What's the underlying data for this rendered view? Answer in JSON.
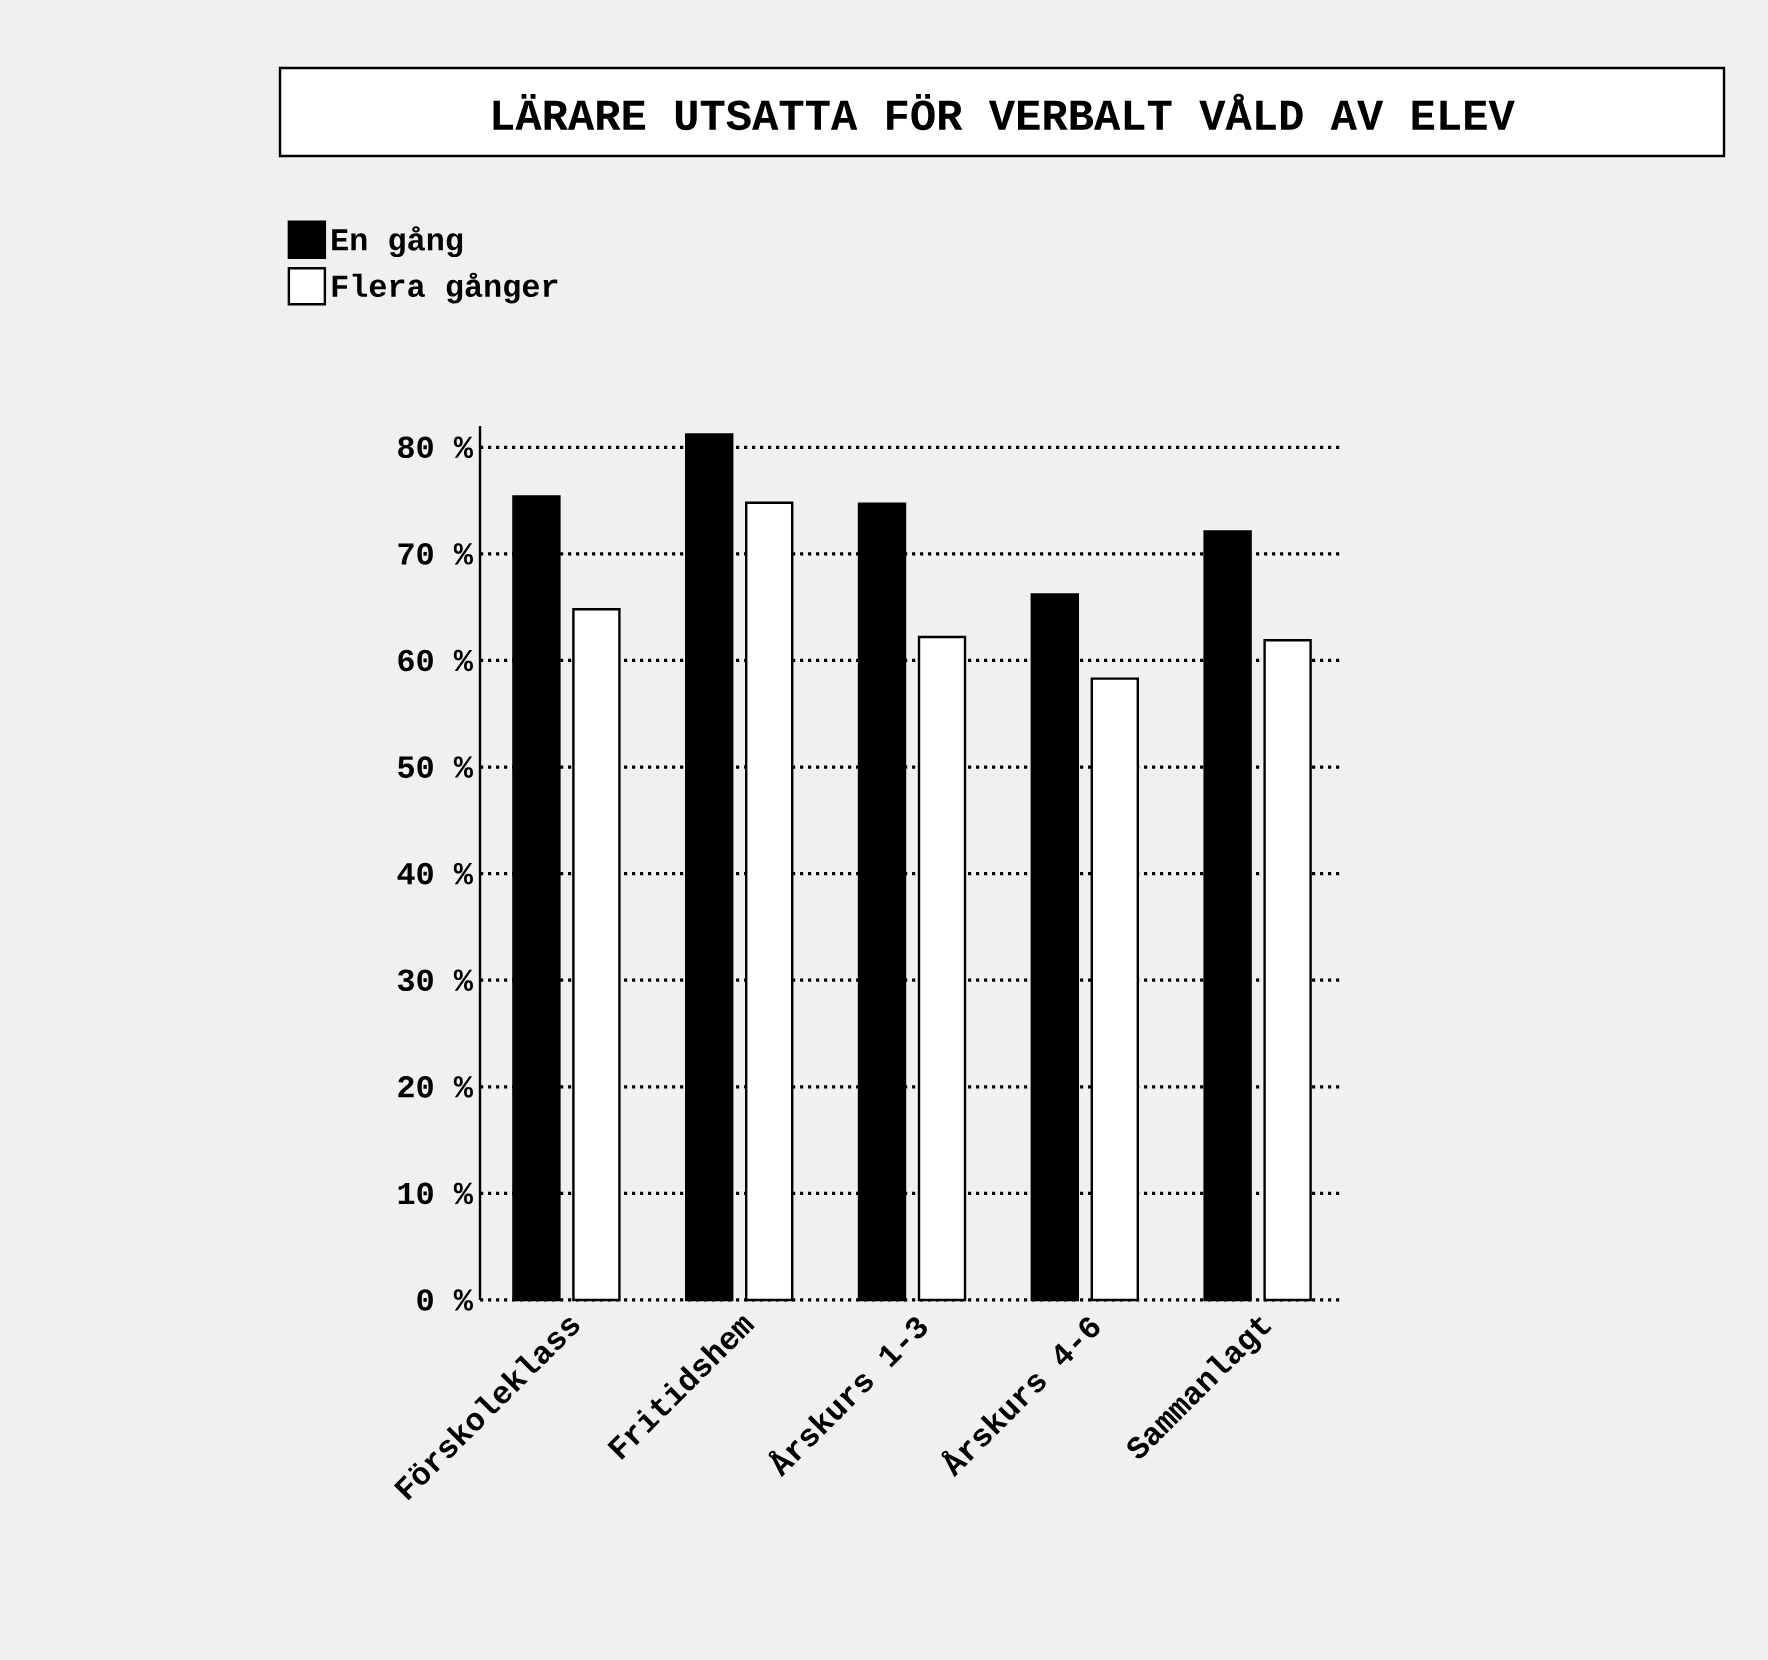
{
  "chart_data": {
    "type": "bar",
    "title": "LÄRARE UTSATTA FÖR VERBALT VÅLD AV ELEV",
    "categories": [
      "Förskoleklass",
      "Fritidshem",
      "Årskurs 1-3",
      "Årskurs 4-6",
      "Sammanlagt"
    ],
    "series": [
      {
        "name": "En gång",
        "color": "#000000",
        "values": [
          75.4,
          81.2,
          74.7,
          66.2,
          72.1
        ]
      },
      {
        "name": "Flera gånger",
        "color": "#ffffff",
        "values": [
          64.8,
          74.8,
          62.2,
          58.3,
          61.9
        ]
      }
    ],
    "ylim": [
      0,
      82
    ],
    "yticks": [
      {
        "value": 0,
        "label": "0 %"
      },
      {
        "value": 10,
        "label": "10 %"
      },
      {
        "value": 20,
        "label": "20 %"
      },
      {
        "value": 30,
        "label": "30 %"
      },
      {
        "value": 40,
        "label": "40 %"
      },
      {
        "value": 50,
        "label": "50 %"
      },
      {
        "value": 60,
        "label": "60 %"
      },
      {
        "value": 70,
        "label": "70 %"
      },
      {
        "value": 80,
        "label": "80 %"
      }
    ],
    "grid": "y",
    "legend": "top left"
  }
}
